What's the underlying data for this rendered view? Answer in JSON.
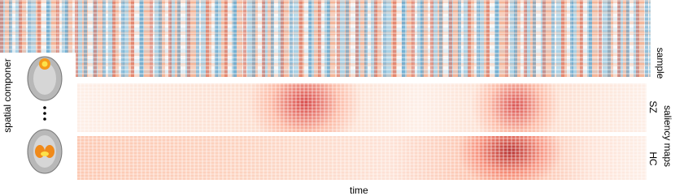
{
  "labels": {
    "sample": "sample",
    "saliency_maps": "saliency maps",
    "sz": "SZ",
    "hc": "HC",
    "time": "time",
    "spatial_components": "spatial componer"
  }
}
